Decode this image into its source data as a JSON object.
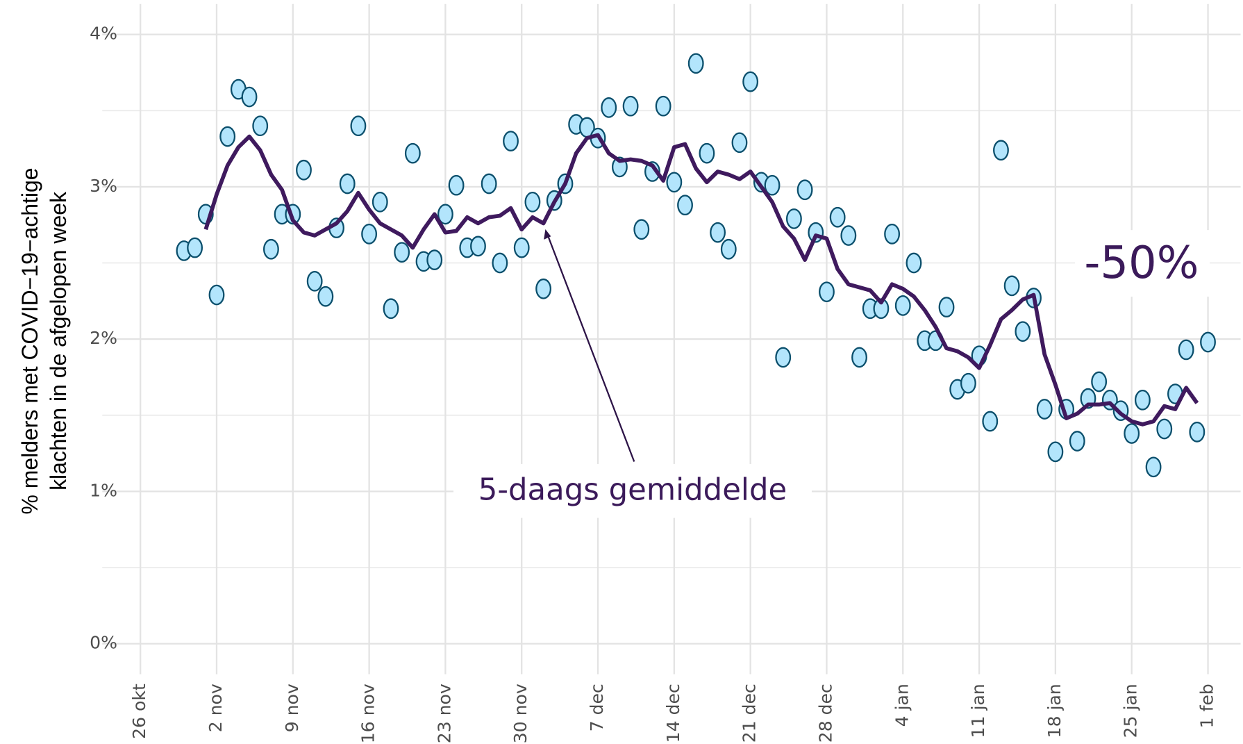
{
  "chart_data": {
    "type": "scatter",
    "ylabel": [
      "% melders met COVID−19−achtige",
      "klachten in de afgelopen week"
    ],
    "annotations": [
      "5-daags gemiddelde",
      "-50%"
    ],
    "xlim": [
      -3.5,
      101
    ],
    "ylim": [
      -0.2,
      4.2
    ],
    "xticks": [
      {
        "value": 0,
        "label": "26 okt"
      },
      {
        "value": 7,
        "label": "2 nov"
      },
      {
        "value": 14,
        "label": "9 nov"
      },
      {
        "value": 21,
        "label": "16 nov"
      },
      {
        "value": 28,
        "label": "23 nov"
      },
      {
        "value": 35,
        "label": "30 nov"
      },
      {
        "value": 42,
        "label": "7 dec"
      },
      {
        "value": 49,
        "label": "14 dec"
      },
      {
        "value": 56,
        "label": "21 dec"
      },
      {
        "value": 63,
        "label": "28 dec"
      },
      {
        "value": 70,
        "label": "4 jan"
      },
      {
        "value": 77,
        "label": "11 jan"
      },
      {
        "value": 84,
        "label": "18 jan"
      },
      {
        "value": 91,
        "label": "25 jan"
      },
      {
        "value": 98,
        "label": "1 feb"
      }
    ],
    "yticks": [
      {
        "value": 0,
        "label": "0%"
      },
      {
        "value": 1,
        "label": "1%"
      },
      {
        "value": 2,
        "label": "2%"
      },
      {
        "value": 3,
        "label": "3%"
      },
      {
        "value": 4,
        "label": "4%"
      }
    ],
    "yminorticks": [
      0.5,
      1.5,
      2.5,
      3.5
    ],
    "grid": true,
    "series": [
      {
        "type": "scatter",
        "color": "#b3e5fc",
        "edgecolor": "#0b4f6c",
        "x": [
          4,
          5,
          6,
          7,
          8,
          9,
          10,
          11,
          12,
          13,
          14,
          15,
          16,
          17,
          18,
          19,
          20,
          21,
          22,
          23,
          24,
          25,
          26,
          27,
          28,
          29,
          30,
          31,
          32,
          33,
          34,
          35,
          36,
          37,
          38,
          39,
          40,
          41,
          42,
          43,
          44,
          45,
          46,
          47,
          48,
          49,
          50,
          51,
          52,
          53,
          54,
          55,
          56,
          57,
          58,
          59,
          60,
          61,
          62,
          63,
          64,
          65,
          66,
          67,
          68,
          69,
          70,
          71,
          72,
          73,
          74,
          75,
          76,
          77,
          78,
          79,
          80,
          81,
          82,
          83,
          84,
          85,
          86,
          87,
          88,
          89,
          90,
          91,
          92,
          93,
          94,
          95,
          96,
          97,
          98
        ],
        "values": [
          2.58,
          2.6,
          2.82,
          2.29,
          3.33,
          3.64,
          3.59,
          3.4,
          2.59,
          2.82,
          2.82,
          3.11,
          2.38,
          2.28,
          2.73,
          3.02,
          3.4,
          2.69,
          2.9,
          2.2,
          2.57,
          3.22,
          2.51,
          2.52,
          2.82,
          3.01,
          2.6,
          2.61,
          3.02,
          2.5,
          3.3,
          2.6,
          2.9,
          2.33,
          2.91,
          3.02,
          3.41,
          3.39,
          3.32,
          3.52,
          3.13,
          3.53,
          2.72,
          3.1,
          3.53,
          3.03,
          2.88,
          3.81,
          3.22,
          2.7,
          2.59,
          3.29,
          3.69,
          3.03,
          3.01,
          1.88,
          2.79,
          2.98,
          2.7,
          2.31,
          2.8,
          2.68,
          1.88,
          2.2,
          2.2,
          2.69,
          2.22,
          2.5,
          1.99,
          1.99,
          2.21,
          1.67,
          1.71,
          1.89,
          1.46,
          3.24,
          2.35,
          2.05,
          2.27,
          1.54,
          1.26,
          1.54,
          1.33,
          1.61,
          1.72,
          1.6,
          1.53,
          1.38,
          1.6,
          1.16,
          1.41,
          1.64,
          1.93,
          1.39,
          1.98
        ]
      },
      {
        "type": "line",
        "color": "#3f1a5e",
        "x": [
          6,
          7,
          8,
          9,
          10,
          11,
          12,
          13,
          14,
          15,
          16,
          17,
          18,
          19,
          20,
          21,
          22,
          23,
          24,
          25,
          26,
          27,
          28,
          29,
          30,
          31,
          32,
          33,
          34,
          35,
          36,
          37,
          38,
          39,
          40,
          41,
          42,
          43,
          44,
          45,
          46,
          47,
          48,
          49,
          50,
          51,
          52,
          53,
          54,
          55,
          56,
          57,
          58,
          59,
          60,
          61,
          62,
          63,
          64,
          65,
          66,
          67,
          68,
          69,
          70,
          71,
          72,
          73,
          74,
          75,
          76,
          77,
          78,
          79,
          80,
          81,
          82,
          83,
          84,
          85,
          86,
          87,
          88,
          89,
          90,
          91,
          92,
          93,
          94,
          95,
          96,
          97
        ],
        "values": [
          2.72,
          2.95,
          3.14,
          3.26,
          3.33,
          3.24,
          3.08,
          2.98,
          2.78,
          2.7,
          2.68,
          2.72,
          2.76,
          2.84,
          2.96,
          2.85,
          2.76,
          2.72,
          2.68,
          2.6,
          2.72,
          2.82,
          2.7,
          2.71,
          2.8,
          2.76,
          2.8,
          2.81,
          2.86,
          2.72,
          2.8,
          2.76,
          2.9,
          3.02,
          3.22,
          3.32,
          3.34,
          3.22,
          3.17,
          3.18,
          3.17,
          3.14,
          3.04,
          3.26,
          3.28,
          3.12,
          3.03,
          3.1,
          3.08,
          3.05,
          3.1,
          3.0,
          2.9,
          2.74,
          2.66,
          2.52,
          2.68,
          2.66,
          2.46,
          2.36,
          2.34,
          2.32,
          2.24,
          2.36,
          2.33,
          2.28,
          2.19,
          2.08,
          1.94,
          1.92,
          1.88,
          1.81,
          1.96,
          2.13,
          2.19,
          2.26,
          2.29,
          1.9,
          1.7,
          1.48,
          1.51,
          1.57,
          1.57,
          1.58,
          1.51,
          1.46,
          1.44,
          1.46,
          1.56,
          1.54,
          1.68,
          1.58
        ]
      }
    ]
  }
}
